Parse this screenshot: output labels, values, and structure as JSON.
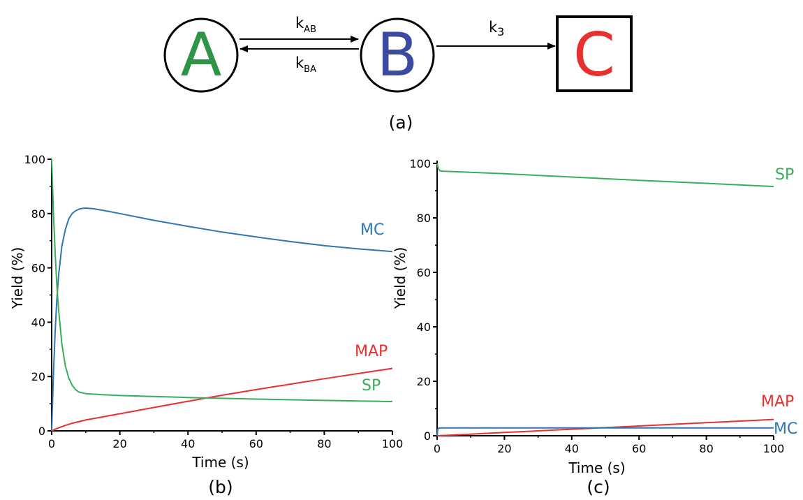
{
  "scheme": {
    "nodes": [
      {
        "label": "A",
        "color": "#2e9446",
        "shape": "circle"
      },
      {
        "label": "B",
        "color": "#3b49a0",
        "shape": "circle"
      },
      {
        "label": "C",
        "color": "#e8302f",
        "shape": "square"
      }
    ],
    "rates": [
      {
        "base": "k",
        "sub": "AB"
      },
      {
        "base": "k",
        "sub": "BA"
      },
      {
        "base": "k",
        "sub": "3"
      }
    ],
    "caption": "(a)"
  },
  "chart_data": [
    {
      "type": "line",
      "caption": "(b)",
      "xlabel": "Time (s)",
      "ylabel": "Yield (%)",
      "xlim": [
        0,
        100
      ],
      "ylim": [
        0,
        100
      ],
      "xticks": [
        0,
        20,
        40,
        60,
        80,
        100
      ],
      "yticks": [
        0,
        20,
        40,
        60,
        80,
        100
      ],
      "grid": false,
      "series": [
        {
          "name": "MC",
          "color": "#2f76b4",
          "x": [
            0,
            0.5,
            1,
            1.5,
            2,
            3,
            4,
            5,
            6,
            7,
            8,
            9,
            10,
            12,
            15,
            20,
            30,
            40,
            50,
            60,
            70,
            80,
            90,
            100
          ],
          "y": [
            0,
            20,
            36,
            48,
            57,
            68,
            74,
            78,
            80,
            81,
            81.6,
            81.9,
            82,
            81.8,
            81.2,
            80,
            77.5,
            75.3,
            73.2,
            71.4,
            69.7,
            68.2,
            67,
            66
          ]
        },
        {
          "name": "MAP",
          "color": "#e8302f",
          "x": [
            0,
            1,
            2,
            4,
            6,
            10,
            20,
            30,
            40,
            50,
            60,
            70,
            80,
            90,
            100
          ],
          "y": [
            0,
            0.6,
            1.1,
            2,
            2.8,
            4,
            6.3,
            8.6,
            10.9,
            13.1,
            15.2,
            17.2,
            19.2,
            21.1,
            23
          ]
        },
        {
          "name": "SP",
          "color": "#3aad5a",
          "x": [
            0,
            0.5,
            1,
            1.5,
            2,
            3,
            4,
            5,
            6,
            7,
            8,
            10,
            15,
            20,
            40,
            60,
            80,
            100
          ],
          "y": [
            100,
            81,
            66,
            54,
            45,
            32,
            24,
            19.5,
            16.8,
            15.2,
            14.3,
            13.7,
            13.3,
            13,
            12.3,
            11.7,
            11.2,
            10.8
          ]
        }
      ]
    },
    {
      "type": "line",
      "caption": "(c)",
      "xlabel": "Time (s)",
      "ylabel": "Yield (%)",
      "xlim": [
        0,
        100
      ],
      "ylim": [
        0,
        100
      ],
      "xticks": [
        0,
        20,
        40,
        60,
        80,
        100
      ],
      "yticks": [
        0,
        20,
        40,
        60,
        80,
        100
      ],
      "grid": false,
      "series": [
        {
          "name": "SP",
          "color": "#3aad5a",
          "x": [
            0,
            0.3,
            0.6,
            1,
            2,
            5,
            20,
            40,
            60,
            80,
            100
          ],
          "y": [
            100,
            98.5,
            97.7,
            97.2,
            97.1,
            97,
            96.2,
            95,
            93.8,
            92.7,
            91.5
          ]
        },
        {
          "name": "MAP",
          "color": "#e8302f",
          "x": [
            0,
            10,
            20,
            40,
            60,
            80,
            100
          ],
          "y": [
            0,
            0.6,
            1.2,
            2.4,
            3.6,
            4.8,
            6
          ]
        },
        {
          "name": "MC",
          "color": "#2f76b4",
          "x": [
            0,
            0.2,
            0.5,
            1,
            20,
            40,
            60,
            80,
            100
          ],
          "y": [
            0,
            2.4,
            2.8,
            2.9,
            2.9,
            2.9,
            2.9,
            2.9,
            2.9
          ]
        }
      ]
    }
  ]
}
